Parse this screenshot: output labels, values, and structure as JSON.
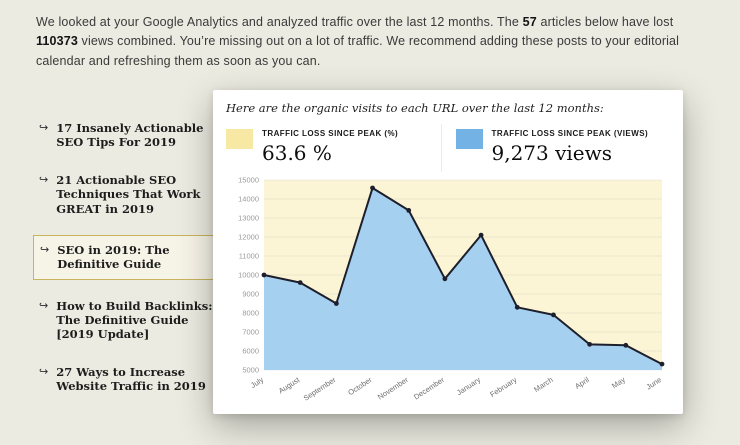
{
  "intro": {
    "part1": "We looked at your Google Analytics and analyzed traffic over the last 12 months. The ",
    "article_count": "57",
    "part2": " articles below have lost ",
    "views_lost": "110373",
    "part3": " views combined. You’re missing out on a lot of traffic. We recommend adding these posts to your editorial calendar and refreshing them as soon as you can."
  },
  "icons": {
    "bullet_arrow": "↪"
  },
  "sidebar": {
    "items": [
      {
        "label": "17 Insanely Actionable SEO Tips For 2019",
        "selected": false
      },
      {
        "label": "21 Actionable SEO Techniques That Work GREAT in 2019",
        "selected": false
      },
      {
        "label": "SEO in 2019: The Definitive Guide",
        "selected": true
      },
      {
        "label": "How to Build Backlinks: The Definitive Guide [2019 Update]",
        "selected": false
      },
      {
        "label": "27 Ways to Increase Website Traffic in 2019",
        "selected": false
      }
    ]
  },
  "panel": {
    "title": "Here are the organic visits to each URL over the last 12 months:",
    "legend": [
      {
        "label": "TRAFFIC LOSS SINCE PEAK (%)",
        "value": "63.6 %",
        "color": "#f7e9a3"
      },
      {
        "label": "TRAFFIC LOSS SINCE PEAK (VIEWS)",
        "value": "9,273 views",
        "color": "#72b2e4"
      }
    ]
  },
  "chart_data": {
    "type": "area",
    "title": "Organic visits per month over the last 12 months",
    "x": [
      "July",
      "August",
      "September",
      "October",
      "November",
      "December",
      "January",
      "February",
      "March",
      "April",
      "May",
      "June"
    ],
    "values": [
      10000,
      9600,
      8500,
      14580,
      13400,
      9800,
      12100,
      8300,
      7900,
      6350,
      6300,
      5310
    ],
    "ylim": [
      5000,
      15000
    ],
    "ytick_step": 1000,
    "xlabel": "",
    "ylabel": "",
    "grid": true,
    "legend_position": "top",
    "plot_bg": "#fbf5d6",
    "area_fill": "#a5d0f0",
    "line_color": "#1d1f2c"
  }
}
